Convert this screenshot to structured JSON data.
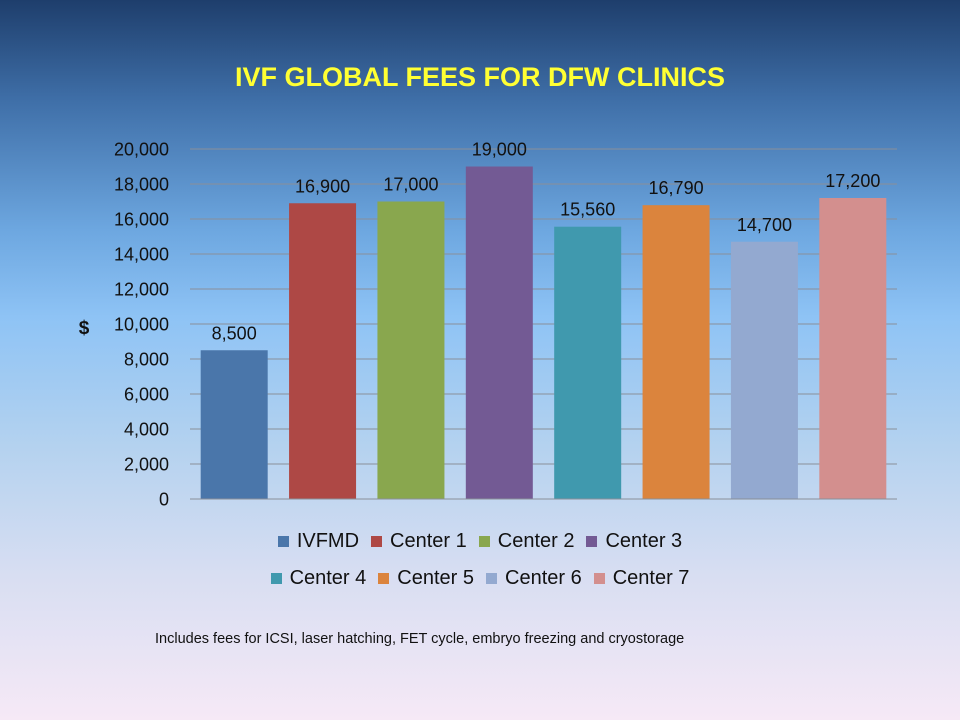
{
  "title": "IVF GLOBAL FEES FOR DFW CLINICS",
  "footnote": "Includes fees for ICSI, laser hatching, FET cycle, embryo freezing and cryostorage",
  "chart_data": {
    "type": "bar",
    "title": "IVF GLOBAL FEES FOR DFW CLINICS",
    "xlabel": "",
    "ylabel": "$",
    "ylim": [
      0,
      20000
    ],
    "yticks": [
      0,
      2000,
      4000,
      6000,
      8000,
      10000,
      12000,
      14000,
      16000,
      18000,
      20000
    ],
    "ytick_labels": [
      "0",
      "2,000",
      "4,000",
      "6,000",
      "8,000",
      "10,000",
      "12,000",
      "14,000",
      "16,000",
      "18,000",
      "20,000"
    ],
    "grid": true,
    "legend_position": "bottom",
    "categories": [
      "IVFMD",
      "Center 1",
      "Center 2",
      "Center 3",
      "Center 4",
      "Center 5",
      "Center 6",
      "Center 7"
    ],
    "values": [
      8500,
      16900,
      17000,
      19000,
      15560,
      16790,
      14700,
      17200
    ],
    "value_labels": [
      "8,500",
      "16,900",
      "17,000",
      "19,000",
      "15,560",
      "16,790",
      "14,700",
      "17,200"
    ],
    "colors": [
      "#4a76aa",
      "#ae4845",
      "#89a74e",
      "#735a94",
      "#4099ae",
      "#db843d",
      "#93a9d0",
      "#d38f8e"
    ]
  }
}
